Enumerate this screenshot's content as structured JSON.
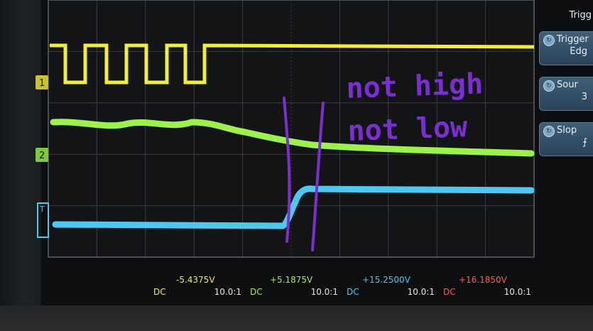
{
  "annotation": {
    "line1": "not high",
    "line2": "not low",
    "color": "#7b2fd1"
  },
  "channels": {
    "ch1": {
      "marker": "1",
      "color": "#f2ec3b"
    },
    "ch2": {
      "marker": "2",
      "color": "#9cf24a"
    },
    "ch3": {
      "marker": "T",
      "color": "#4fc8f0"
    }
  },
  "side_panel": {
    "header": "Trigg",
    "trigger_type": {
      "label": "Trigger",
      "value": "Edg"
    },
    "source": {
      "label": "Sour",
      "value": "3"
    },
    "slope": {
      "label": "Slop",
      "value": "⨍"
    }
  },
  "status": [
    {
      "volt": "-5.4375V",
      "coupling": "DC",
      "ratio": "10.0:1",
      "color": "#f2ec3b"
    },
    {
      "volt": "+5.1875V",
      "coupling": "DC",
      "ratio": "10.0:1",
      "color": "#9cf24a"
    },
    {
      "volt": "+15.2500V",
      "coupling": "DC",
      "ratio": "10.0:1",
      "color": "#4fc8f0"
    },
    {
      "volt": "+16.1850V",
      "coupling": "DC",
      "ratio": "10.0:1",
      "color": "#ff5a5a"
    }
  ]
}
